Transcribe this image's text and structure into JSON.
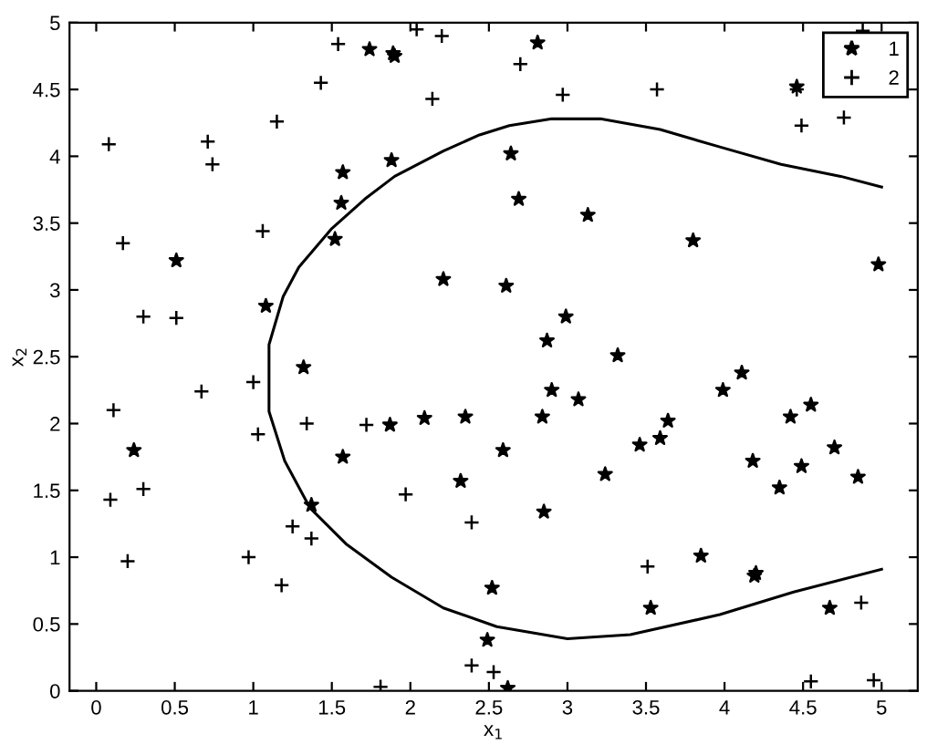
{
  "chart_data": {
    "type": "scatter",
    "xlabel": "x$_{1}$",
    "ylabel": "x$_{2}$",
    "xlim": [
      -0.17,
      5.23
    ],
    "ylim": [
      0,
      5
    ],
    "xticks": [
      0,
      0.5,
      1,
      1.5,
      2,
      2.5,
      3,
      3.5,
      4,
      4.5,
      5
    ],
    "yticks": [
      0,
      0.5,
      1,
      1.5,
      2,
      2.5,
      3,
      3.5,
      4,
      4.5,
      5
    ],
    "grid": false,
    "legend": "top right",
    "series": [
      {
        "name": "1",
        "marker": "star",
        "color": "#000000",
        "x": [
          1.74,
          1.89,
          1.9,
          1.88,
          1.57,
          1.56,
          1.52,
          0.51,
          2.21,
          1.08,
          1.32,
          2.81,
          4.46,
          2.64,
          2.69,
          3.13,
          3.8,
          4.98,
          2.61,
          2.99,
          2.87,
          3.32,
          0.24,
          1.87,
          2.09,
          2.35,
          1.57,
          2.32,
          1.37,
          2.52,
          2.49,
          2.62,
          2.59,
          2.9,
          2.84,
          3.07,
          2.85,
          3.24,
          3.46,
          3.59,
          3.64,
          3.99,
          4.11,
          4.42,
          4.55,
          4.18,
          4.35,
          4.49,
          4.7,
          4.85,
          3.85,
          4.2,
          4.19,
          3.53,
          4.67
        ],
        "values": [
          4.8,
          4.77,
          4.75,
          3.97,
          3.88,
          3.65,
          3.38,
          3.22,
          3.08,
          2.88,
          2.42,
          4.85,
          4.52,
          4.02,
          3.68,
          3.56,
          3.37,
          3.19,
          3.03,
          2.8,
          2.62,
          2.51,
          1.8,
          1.99,
          2.04,
          2.05,
          1.75,
          1.57,
          1.39,
          0.77,
          0.38,
          0.02,
          1.8,
          2.25,
          2.05,
          2.18,
          1.34,
          1.62,
          1.84,
          1.89,
          2.02,
          2.25,
          2.38,
          2.05,
          2.14,
          1.72,
          1.52,
          1.68,
          1.82,
          1.6,
          1.01,
          0.88,
          0.86,
          0.62,
          0.62
        ]
      },
      {
        "name": "2",
        "marker": "cross",
        "color": "#000000",
        "x": [
          1.54,
          2.04,
          2.2,
          1.43,
          2.14,
          1.15,
          0.08,
          0.71,
          0.74,
          0.17,
          1.06,
          0.3,
          0.51,
          2.7,
          2.97,
          3.57,
          4.49,
          4.76,
          4.88,
          4.46,
          0.11,
          0.67,
          1.0,
          1.34,
          1.03,
          1.72,
          0.09,
          0.3,
          0.2,
          0.97,
          1.18,
          1.37,
          1.25,
          1.97,
          2.39,
          2.39,
          2.53,
          1.81,
          3.51,
          4.87,
          4.55,
          4.95
        ],
        "values": [
          4.84,
          4.95,
          4.9,
          4.55,
          4.43,
          4.26,
          4.09,
          4.11,
          3.94,
          3.35,
          3.44,
          2.8,
          2.79,
          4.69,
          4.46,
          4.5,
          4.23,
          4.29,
          4.94,
          4.5,
          2.1,
          2.24,
          2.31,
          2.0,
          1.92,
          1.99,
          1.43,
          1.51,
          0.97,
          1.0,
          0.79,
          1.14,
          1.23,
          1.47,
          1.26,
          0.19,
          0.14,
          0.03,
          0.93,
          0.66,
          0.07,
          0.08
        ]
      },
      {
        "type": "line",
        "color": "#000000",
        "x": [
          5.0,
          4.44,
          3.97,
          3.4,
          3.0,
          2.55,
          2.21,
          1.88,
          1.59,
          1.36,
          1.2,
          1.1,
          1.1,
          1.19,
          1.29,
          1.5,
          1.71,
          1.9,
          2.21,
          2.44,
          2.63,
          2.9,
          3.21,
          3.59,
          3.97,
          4.36,
          4.74,
          5.0
        ],
        "values": [
          0.91,
          0.74,
          0.57,
          0.42,
          0.39,
          0.48,
          0.62,
          0.85,
          1.1,
          1.37,
          1.72,
          2.09,
          2.59,
          2.95,
          3.17,
          3.46,
          3.68,
          3.85,
          4.04,
          4.16,
          4.23,
          4.28,
          4.28,
          4.2,
          4.07,
          3.94,
          3.85,
          3.77
        ]
      }
    ]
  }
}
